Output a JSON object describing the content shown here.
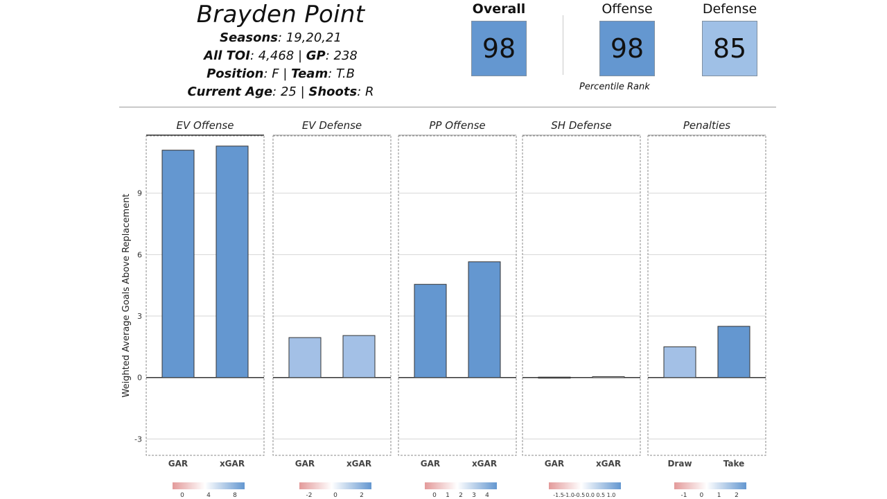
{
  "player": {
    "name": "Brayden Point",
    "seasons_label": "Seasons",
    "seasons_value": ": 19,20,21",
    "toi_label": "All TOI",
    "toi_value": ": 4,468 | ",
    "gp_label": "GP",
    "gp_value": ": 238",
    "position_label": "Position",
    "position_value": ": F | ",
    "team_label": "Team",
    "team_value": ": T.B",
    "age_label": "Current Age",
    "age_value": ": 25 | ",
    "shoots_label": "Shoots",
    "shoots_value": ": R"
  },
  "ratings": {
    "overall_label": "Overall",
    "overall_value": "98",
    "offense_label": "Offense",
    "offense_value": "98",
    "defense_label": "Defense",
    "defense_value": "85",
    "percentile_label": "Percentile Rank",
    "colors": {
      "overall": "#6497d0",
      "offense": "#6497d0",
      "defense": "#9fc0e6"
    }
  },
  "chart_data": {
    "type": "bar",
    "ylabel": "Weighted Average Goals Above Replacement",
    "ylim": [
      -3.8,
      11.8
    ],
    "yticks": [
      -3,
      0,
      3,
      6,
      9
    ],
    "grid": true,
    "panels": [
      {
        "title": "EV Offense",
        "categories": [
          "GAR",
          "xGAR"
        ],
        "values": [
          11.1,
          11.3
        ],
        "colors": [
          "#6497d0",
          "#6497d0"
        ],
        "legend_ticks": [
          "0",
          "4",
          "8"
        ]
      },
      {
        "title": "EV Defense",
        "categories": [
          "GAR",
          "xGAR"
        ],
        "values": [
          1.95,
          2.05
        ],
        "colors": [
          "#a3c0e6",
          "#a3c0e6"
        ],
        "legend_ticks": [
          "-2",
          "0",
          "2"
        ]
      },
      {
        "title": "PP Offense",
        "categories": [
          "GAR",
          "xGAR"
        ],
        "values": [
          4.55,
          5.65
        ],
        "colors": [
          "#6497d0",
          "#6497d0"
        ],
        "legend_ticks": [
          "0",
          "1",
          "2",
          "3",
          "4"
        ]
      },
      {
        "title": "SH Defense",
        "categories": [
          "GAR",
          "xGAR"
        ],
        "values": [
          0.02,
          0.04
        ],
        "colors": [
          "#555555",
          "#cccccc"
        ],
        "legend_ticks": [
          "-1.5",
          "-1.0",
          "-0.5",
          "0.0",
          "0.5",
          "1.0"
        ]
      },
      {
        "title": "Penalties",
        "categories": [
          "Draw",
          "Take"
        ],
        "values": [
          1.5,
          2.5
        ],
        "colors": [
          "#a3c0e6",
          "#6497d0"
        ],
        "legend_ticks": [
          "-1",
          "0",
          "1",
          "2"
        ]
      }
    ]
  }
}
